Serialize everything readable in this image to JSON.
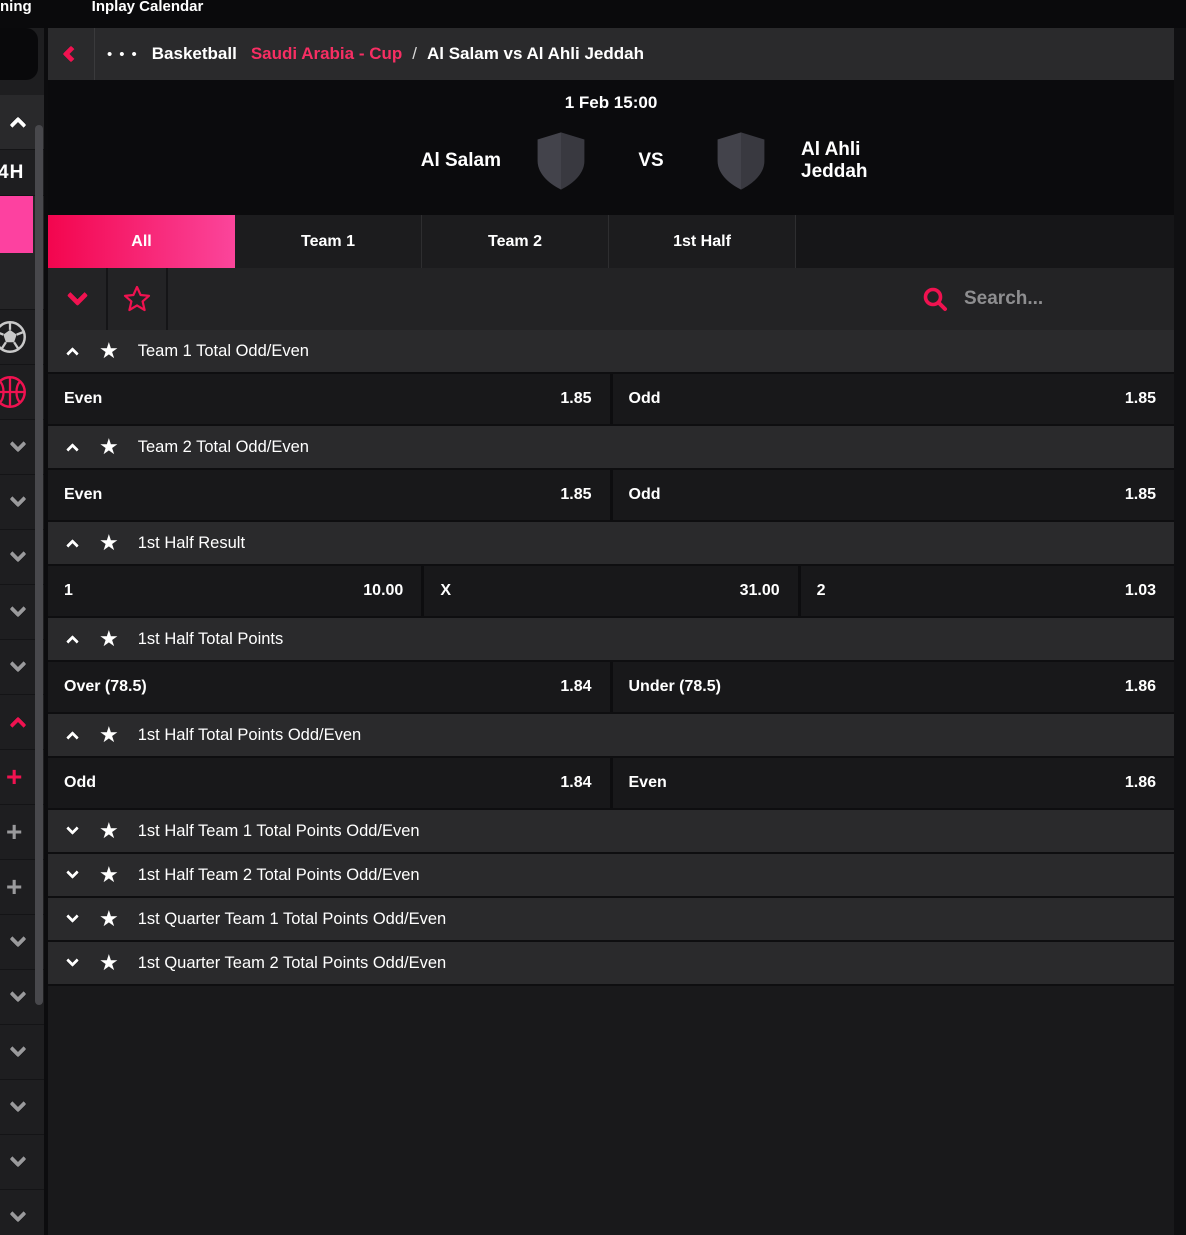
{
  "colors": {
    "accent": "#f01250",
    "tab_gradient_start": "#f3054e",
    "tab_gradient_end": "#fb459b",
    "sidebar_active_block": "#fd41a0",
    "competition_text": "#f72e63"
  },
  "topbar": {
    "left_partial_link": "ning",
    "calendar_link": "Inplay Calendar"
  },
  "breadcrumb": {
    "menu_dots": "•••",
    "sport": "Basketball",
    "competition": "Saudi Arabia - Cup",
    "separator": "/",
    "match": "Al Salam vs Al Ahli Jeddah"
  },
  "match": {
    "datetime": "1 Feb 15:00",
    "home_team": "Al Salam",
    "vs_label": "VS",
    "away_team": "Al Ahli Jeddah"
  },
  "tabs": [
    {
      "label": "All",
      "active": true
    },
    {
      "label": "Team 1",
      "active": false
    },
    {
      "label": "Team 2",
      "active": false
    },
    {
      "label": "1st Half",
      "active": false
    }
  ],
  "filter": {
    "search_placeholder": "Search..."
  },
  "sidebar": {
    "partial_label": "4H",
    "items": [
      {
        "icon": "chevron-up-icon",
        "color": "white",
        "row": "lighter"
      },
      {
        "icon": "label",
        "label": "4H",
        "row": "short"
      },
      {
        "icon": "active-highlight",
        "row": "pinkrow"
      },
      {
        "icon": "none",
        "row": "empty"
      },
      {
        "icon": "soccer-icon",
        "color": "gray"
      },
      {
        "icon": "basketball-icon",
        "color": "accent"
      },
      {
        "icon": "chevron-down-icon",
        "color": "gray"
      },
      {
        "icon": "chevron-down-icon",
        "color": "gray"
      },
      {
        "icon": "chevron-down-icon",
        "color": "gray"
      },
      {
        "icon": "chevron-down-icon",
        "color": "gray"
      },
      {
        "icon": "chevron-down-icon",
        "color": "gray"
      },
      {
        "icon": "chevron-up-icon",
        "color": "accent"
      },
      {
        "icon": "plus-icon",
        "color": "accent"
      },
      {
        "icon": "plus-icon",
        "color": "gray"
      },
      {
        "icon": "plus-icon",
        "color": "gray"
      },
      {
        "icon": "chevron-down-icon",
        "color": "gray"
      },
      {
        "icon": "chevron-down-icon",
        "color": "gray"
      },
      {
        "icon": "chevron-down-icon",
        "color": "gray"
      },
      {
        "icon": "chevron-down-icon",
        "color": "gray"
      },
      {
        "icon": "chevron-down-icon",
        "color": "gray"
      },
      {
        "icon": "chevron-down-icon",
        "color": "gray"
      }
    ]
  },
  "markets": [
    {
      "name": "Team 1 Total Odd/Even",
      "expanded": true,
      "outcomes": [
        {
          "label": "Even",
          "odds": "1.85"
        },
        {
          "label": "Odd",
          "odds": "1.85"
        }
      ]
    },
    {
      "name": "Team 2 Total Odd/Even",
      "expanded": true,
      "outcomes": [
        {
          "label": "Even",
          "odds": "1.85"
        },
        {
          "label": "Odd",
          "odds": "1.85"
        }
      ]
    },
    {
      "name": "1st Half Result",
      "expanded": true,
      "outcomes": [
        {
          "label": "1",
          "odds": "10.00"
        },
        {
          "label": "X",
          "odds": "31.00"
        },
        {
          "label": "2",
          "odds": "1.03"
        }
      ]
    },
    {
      "name": "1st Half Total Points",
      "expanded": true,
      "outcomes": [
        {
          "label": "Over (78.5)",
          "odds": "1.84"
        },
        {
          "label": "Under (78.5)",
          "odds": "1.86"
        }
      ]
    },
    {
      "name": "1st Half Total Points Odd/Even",
      "expanded": true,
      "outcomes": [
        {
          "label": "Odd",
          "odds": "1.84"
        },
        {
          "label": "Even",
          "odds": "1.86"
        }
      ]
    },
    {
      "name": "1st Half Team 1 Total Points Odd/Even",
      "expanded": false
    },
    {
      "name": "1st Half Team 2 Total Points Odd/Even",
      "expanded": false
    },
    {
      "name": "1st Quarter Team 1 Total Points Odd/Even",
      "expanded": false
    },
    {
      "name": "1st Quarter Team 2 Total Points Odd/Even",
      "expanded": false
    }
  ]
}
